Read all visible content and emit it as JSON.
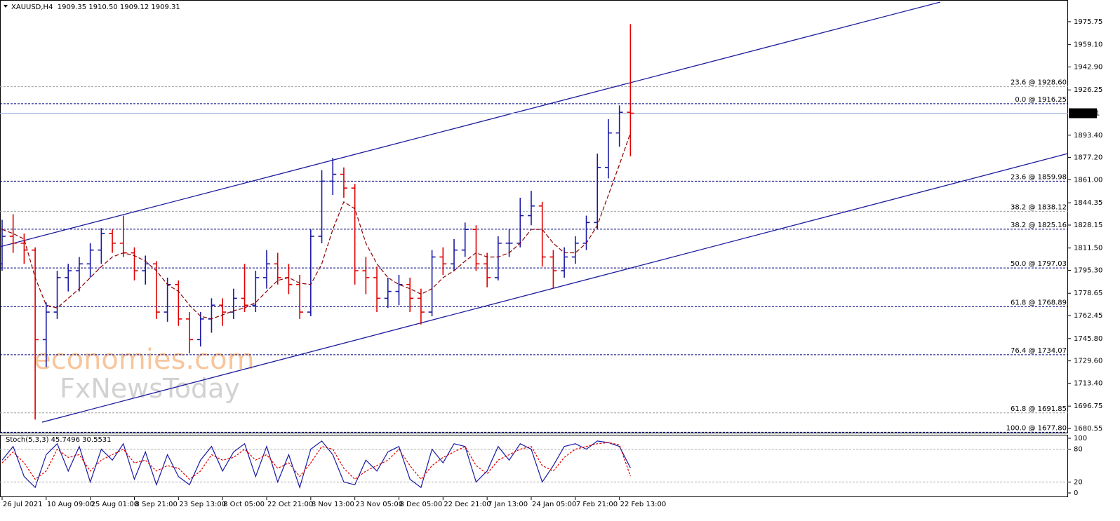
{
  "chart_data": {
    "type": "candlestick",
    "title": "XAUUSD,H4  1909.35 1910.50 1909.12 1909.31",
    "x": [
      0,
      1,
      2,
      3,
      4,
      5,
      6,
      7,
      8,
      9,
      10,
      11,
      12,
      13,
      14,
      15,
      16,
      17,
      18,
      19,
      20,
      21,
      22,
      23,
      24,
      25,
      26,
      27,
      28,
      29,
      30,
      31,
      32,
      33,
      34,
      35,
      36,
      37,
      38,
      39,
      40,
      41,
      42,
      43,
      44,
      45,
      46,
      47,
      48,
      49,
      50,
      51,
      52,
      53,
      54,
      55,
      56,
      57
    ],
    "xlim": [
      -0.19,
      96.7
    ],
    "xticks": [
      {
        "value": 0,
        "label": "26 Jul 2021"
      },
      {
        "value": 4,
        "label": "10 Aug 09:00"
      },
      {
        "value": 8,
        "label": "25 Aug 01:00"
      },
      {
        "value": 12,
        "label": "8 Sep 21:00"
      },
      {
        "value": 16,
        "label": "23 Sep 13:00"
      },
      {
        "value": 20,
        "label": "8 Oct 05:00"
      },
      {
        "value": 24,
        "label": "22 Oct 21:00"
      },
      {
        "value": 28,
        "label": "8 Nov 13:00"
      },
      {
        "value": 32,
        "label": "23 Nov 05:00"
      },
      {
        "value": 36,
        "label": "8 Dec 05:00"
      },
      {
        "value": 40,
        "label": "22 Dec 21:00"
      },
      {
        "value": 44,
        "label": "7 Jan 13:00"
      },
      {
        "value": 48,
        "label": "24 Jan 05:00"
      },
      {
        "value": 52,
        "label": "7 Feb 21:00"
      },
      {
        "value": 56,
        "label": "22 Feb 13:00"
      }
    ],
    "open": [
      1800,
      1820,
      1815,
      1810,
      1745,
      1765,
      1790,
      1795,
      1800,
      1810,
      1822,
      1815,
      1808,
      1795,
      1800,
      1765,
      1785,
      1760,
      1745,
      1760,
      1770,
      1765,
      1775,
      1770,
      1790,
      1800,
      1790,
      1785,
      1765,
      1820,
      1860,
      1865,
      1855,
      1795,
      1790,
      1775,
      1780,
      1785,
      1775,
      1765,
      1805,
      1800,
      1810,
      1825,
      1800,
      1790,
      1815,
      1815,
      1835,
      1842,
      1805,
      1795,
      1805,
      1815,
      1830,
      1870,
      1895,
      1910
    ],
    "high": [
      1832,
      1836,
      1822,
      1812,
      1772,
      1795,
      1800,
      1805,
      1815,
      1826,
      1825,
      1835,
      1812,
      1806,
      1802,
      1790,
      1788,
      1765,
      1765,
      1775,
      1775,
      1782,
      1800,
      1795,
      1810,
      1808,
      1800,
      1792,
      1825,
      1868,
      1877,
      1870,
      1858,
      1805,
      1798,
      1790,
      1792,
      1790,
      1782,
      1810,
      1812,
      1818,
      1830,
      1828,
      1808,
      1820,
      1825,
      1848,
      1853,
      1845,
      1810,
      1812,
      1820,
      1835,
      1880,
      1905,
      1915,
      1974
    ],
    "low": [
      1795,
      1808,
      1800,
      1687,
      1725,
      1760,
      1780,
      1780,
      1790,
      1800,
      1808,
      1805,
      1788,
      1785,
      1760,
      1758,
      1755,
      1735,
      1740,
      1750,
      1755,
      1760,
      1765,
      1765,
      1782,
      1785,
      1778,
      1760,
      1762,
      1815,
      1850,
      1848,
      1785,
      1778,
      1765,
      1768,
      1770,
      1765,
      1756,
      1762,
      1792,
      1795,
      1805,
      1795,
      1783,
      1788,
      1805,
      1812,
      1828,
      1798,
      1782,
      1790,
      1800,
      1810,
      1825,
      1862,
      1885,
      1878
    ],
    "close": [
      1820,
      1815,
      1810,
      1745,
      1765,
      1790,
      1795,
      1800,
      1810,
      1822,
      1815,
      1808,
      1795,
      1800,
      1765,
      1785,
      1760,
      1745,
      1760,
      1770,
      1765,
      1775,
      1770,
      1790,
      1800,
      1790,
      1785,
      1765,
      1820,
      1860,
      1865,
      1855,
      1795,
      1790,
      1775,
      1780,
      1785,
      1775,
      1765,
      1805,
      1800,
      1810,
      1825,
      1800,
      1790,
      1815,
      1815,
      1835,
      1842,
      1805,
      1795,
      1805,
      1815,
      1830,
      1870,
      1895,
      1910,
      1909.31
    ],
    "up_color": "#1a1aa6",
    "down_color": "#e00000",
    "ma": {
      "color": "#8b0000",
      "values": [
        1825,
        1822,
        1818,
        1790,
        1770,
        1768,
        1775,
        1782,
        1790,
        1798,
        1805,
        1808,
        1806,
        1802,
        1795,
        1785,
        1780,
        1770,
        1762,
        1760,
        1763,
        1766,
        1768,
        1772,
        1780,
        1788,
        1790,
        1786,
        1785,
        1800,
        1825,
        1845,
        1840,
        1815,
        1800,
        1790,
        1785,
        1782,
        1778,
        1782,
        1790,
        1795,
        1802,
        1808,
        1805,
        1805,
        1808,
        1815,
        1825,
        1825,
        1815,
        1808,
        1808,
        1815,
        1828,
        1850,
        1872,
        1895
      ]
    },
    "ylim": [
      1677.5,
      1991.5
    ],
    "yticks": [
      1975.75,
      {
        "value": 1959.1,
        "label": "1959.10"
      },
      {
        "value": 1942.9,
        "label": "1942.90"
      },
      1926.25,
      {
        "value": 1893.4,
        "label": "1893.40"
      },
      {
        "value": 1877.2,
        "label": "1877.20"
      },
      {
        "value": 1861,
        "label": "1861.00"
      },
      1844.35,
      1828.15,
      {
        "value": 1811.5,
        "label": "1811.50"
      },
      {
        "value": 1795.3,
        "label": "1795.30"
      },
      1778.65,
      1762.45,
      {
        "value": 1745.8,
        "label": "1745.80"
      },
      {
        "value": 1729.6,
        "label": "1729.60"
      },
      {
        "value": 1713.4,
        "label": "1713.40"
      },
      1696.75,
      1680.55
    ],
    "last_price": 1909.31,
    "levels": [
      {
        "value": 1928.6,
        "label": "23.6 @ 1928.60",
        "color": "#a0a0a0"
      },
      {
        "value": 1916.25,
        "label": "0.0 @ 1916.25",
        "color": "#00007f"
      },
      {
        "value": 1859.98,
        "label": "23.6 @ 1859.98",
        "color": "#00007f"
      },
      {
        "value": 1838.12,
        "label": "38.2 @ 1838.12",
        "color": "#a0a0a0"
      },
      {
        "value": 1825.16,
        "label": "38.2 @ 1825.16",
        "color": "#00007f"
      },
      {
        "value": 1797.03,
        "label": "50.0 @ 1797.03",
        "color": "#00007f"
      },
      {
        "value": 1768.89,
        "label": "61.8 @ 1768.89",
        "color": "#00007f"
      },
      {
        "value": 1734.07,
        "label": "76.4 @ 1734.07",
        "color": "#00007f"
      },
      {
        "value": 1691.85,
        "label": "61.8 @ 1691.85",
        "color": "#a0a0a0"
      },
      {
        "value": 1677.8,
        "label": "100.0 @ 1677.80",
        "color": "#00007f"
      }
    ],
    "trendlines": [
      {
        "x": [
          -0.19,
          85.1
        ],
        "y": [
          1812.4,
          1990
        ],
        "color": "#1c1c9c"
      },
      {
        "x": [
          3.63,
          96.7
        ],
        "y": [
          1685.1,
          1880.1
        ],
        "color": "#1c1c9c"
      }
    ],
    "watermarks": [
      "economies.com",
      "FxNewsToday"
    ],
    "stochastic": {
      "type": "line",
      "label": "Stoch(5,3,3) 45.7496 30.5531",
      "ylim": [
        0,
        100
      ],
      "yticks": [
        100,
        80,
        20,
        0
      ],
      "levels": [
        80,
        20
      ],
      "series": [
        {
          "color": "#1a1aa6",
          "values": [
            60,
            85,
            30,
            10,
            70,
            90,
            40,
            85,
            20,
            80,
            60,
            90,
            25,
            75,
            15,
            70,
            30,
            15,
            60,
            85,
            40,
            75,
            90,
            30,
            85,
            20,
            70,
            10,
            80,
            95,
            70,
            20,
            15,
            60,
            40,
            75,
            85,
            25,
            10,
            80,
            55,
            90,
            85,
            20,
            40,
            85,
            60,
            90,
            80,
            20,
            50,
            85,
            90,
            80,
            95,
            92,
            85,
            45.7496
          ]
        },
        {
          "color": "#e00000",
          "values": [
            55,
            75,
            55,
            25,
            40,
            80,
            65,
            70,
            40,
            60,
            70,
            80,
            55,
            60,
            40,
            50,
            45,
            25,
            40,
            70,
            60,
            65,
            80,
            60,
            70,
            45,
            55,
            30,
            55,
            85,
            80,
            45,
            25,
            40,
            50,
            60,
            80,
            50,
            25,
            50,
            65,
            75,
            85,
            50,
            35,
            60,
            70,
            80,
            85,
            50,
            40,
            65,
            80,
            85,
            90,
            92,
            88,
            30.5531
          ]
        }
      ]
    }
  }
}
